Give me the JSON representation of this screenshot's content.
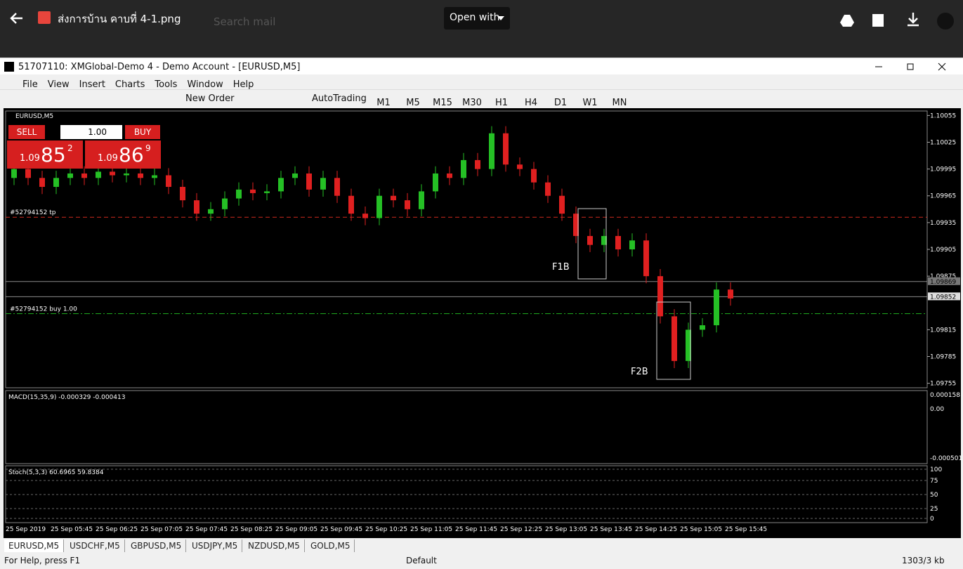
{
  "viewer": {
    "file_name": "ส่งการบ้าน คาบที่ 4-1.png",
    "open_with": "Open with",
    "search": "Search mail"
  },
  "window": {
    "title": "51707110: XMGlobal-Demo 4 - Demo Account - [EURUSD,M5]",
    "menu": [
      "File",
      "View",
      "Insert",
      "Charts",
      "Tools",
      "Window",
      "Help"
    ],
    "toolbar": {
      "new_order": "New Order",
      "autotrading": "AutoTrading",
      "timeframes": [
        "M1",
        "M5",
        "M15",
        "M30",
        "H1",
        "H4",
        "D1",
        "W1",
        "MN"
      ]
    }
  },
  "trade_panel": {
    "sell": "SELL",
    "buy": "BUY",
    "lot": "1.00",
    "sell_prefix": "1.09",
    "sell_big": "85",
    "sell_small": "2",
    "buy_prefix": "1.09",
    "buy_big": "86",
    "buy_small": "9"
  },
  "chart": {
    "type": "candlestick",
    "symbol": "EURUSD,M5",
    "ylim": [
      1.0975,
      1.1006
    ],
    "yticks": [
      1.10055,
      1.10025,
      1.09995,
      1.09965,
      1.09935,
      1.09905,
      1.09875,
      1.09815,
      1.09785,
      1.09755
    ],
    "open": [
      1.09985,
      1.09995,
      1.09985,
      1.09975,
      1.09985,
      1.0999,
      1.09985,
      1.09992,
      1.09988,
      1.0999,
      1.09985,
      1.09988,
      1.09975,
      1.0996,
      1.09945,
      1.0995,
      1.09962,
      1.09972,
      1.09968,
      1.0997,
      1.09985,
      1.0999,
      1.09972,
      1.09985,
      1.09965,
      1.09945,
      1.0994,
      1.09965,
      1.0996,
      1.0995,
      1.0997,
      1.0999,
      1.09985,
      1.10005,
      1.09995,
      1.10035,
      1.1,
      1.09995,
      1.0998,
      1.09965,
      1.09945,
      1.0992,
      1.0991,
      1.0992,
      1.09905,
      1.09915,
      1.09875,
      1.0983,
      1.0978,
      1.09815,
      1.0982,
      1.0986
    ],
    "close": [
      1.09995,
      1.09985,
      1.09975,
      1.09985,
      1.0999,
      1.09985,
      1.09992,
      1.09988,
      1.0999,
      1.09985,
      1.09988,
      1.09975,
      1.0996,
      1.09945,
      1.0995,
      1.09962,
      1.09972,
      1.09968,
      1.0997,
      1.09985,
      1.0999,
      1.09972,
      1.09985,
      1.09965,
      1.09945,
      1.0994,
      1.09965,
      1.0996,
      1.0995,
      1.0997,
      1.0999,
      1.09985,
      1.10005,
      1.09995,
      1.10035,
      1.1,
      1.09995,
      1.0998,
      1.09965,
      1.09945,
      1.0992,
      1.0991,
      1.0992,
      1.09905,
      1.09915,
      1.09875,
      1.0983,
      1.0978,
      1.09815,
      1.0982,
      1.0986,
      1.0985
    ],
    "high": [
      1.10003,
      1.10003,
      1.09993,
      1.09993,
      1.09998,
      1.09998,
      1.1,
      1.1,
      1.09998,
      1.09998,
      1.09996,
      1.09996,
      1.09983,
      1.09968,
      1.09958,
      1.0997,
      1.0998,
      1.0998,
      1.09978,
      1.09993,
      1.09998,
      1.09998,
      1.09993,
      1.09993,
      1.09973,
      1.09953,
      1.09973,
      1.09973,
      1.09968,
      1.09978,
      1.09998,
      1.09998,
      1.10013,
      1.10013,
      1.10043,
      1.10043,
      1.10008,
      1.10003,
      1.09988,
      1.09973,
      1.09953,
      1.09928,
      1.09928,
      1.09928,
      1.09923,
      1.09923,
      1.09883,
      1.09838,
      1.09823,
      1.09828,
      1.09868,
      1.09868
    ],
    "low": [
      1.09977,
      1.09977,
      1.09967,
      1.09967,
      1.09977,
      1.09977,
      1.09977,
      1.0998,
      1.0998,
      1.09977,
      1.09977,
      1.09967,
      1.09952,
      1.09937,
      1.09937,
      1.09942,
      1.09954,
      1.0996,
      1.0996,
      1.09962,
      1.09977,
      1.09964,
      1.09964,
      1.09957,
      1.09937,
      1.09932,
      1.09932,
      1.09952,
      1.09942,
      1.09942,
      1.09962,
      1.09977,
      1.09977,
      1.09987,
      1.09987,
      1.09992,
      1.09987,
      1.09972,
      1.09957,
      1.09937,
      1.09912,
      1.09902,
      1.09902,
      1.09897,
      1.09897,
      1.09867,
      1.09822,
      1.09772,
      1.09772,
      1.09807,
      1.09812,
      1.09842
    ],
    "up_color": "#25c025",
    "down_color": "#e02020",
    "price_lines": [
      1.09869,
      1.09852
    ],
    "orders": [
      {
        "label": "#52794152 tp",
        "price": 1.09941,
        "color": "#d0281e"
      },
      {
        "label": "#52794152 buy 1.00",
        "price": 1.09833,
        "color": "#1fa81f"
      }
    ],
    "annotations": [
      "F1B",
      "F2B"
    ],
    "time_labels": [
      "25 Sep 2019",
      "25 Sep 05:45",
      "25 Sep 06:25",
      "25 Sep 07:05",
      "25 Sep 07:45",
      "25 Sep 08:25",
      "25 Sep 09:05",
      "25 Sep 09:45",
      "25 Sep 10:25",
      "25 Sep 11:05",
      "25 Sep 11:45",
      "25 Sep 12:25",
      "25 Sep 13:05",
      "25 Sep 13:45",
      "25 Sep 14:25",
      "25 Sep 15:05",
      "25 Sep 15:45"
    ]
  },
  "macd": {
    "label": "MACD(15,35,9) -0.000329 -0.000413",
    "ticks": [
      "0.000158",
      "0.00",
      "-0.000501"
    ]
  },
  "stoch": {
    "label": "Stoch(5,3,3) 60.6965 59.8384",
    "ticks": [
      "100",
      "75",
      "50",
      "25",
      "0"
    ]
  },
  "tabs": [
    "EURUSD,M5",
    "USDCHF,M5",
    "GBPUSD,M5",
    "USDJPY,M5",
    "NZDUSD,M5",
    "GOLD,M5"
  ],
  "status": {
    "help": "For Help, press F1",
    "profile": "Default",
    "traffic": "1303/3 kb"
  }
}
